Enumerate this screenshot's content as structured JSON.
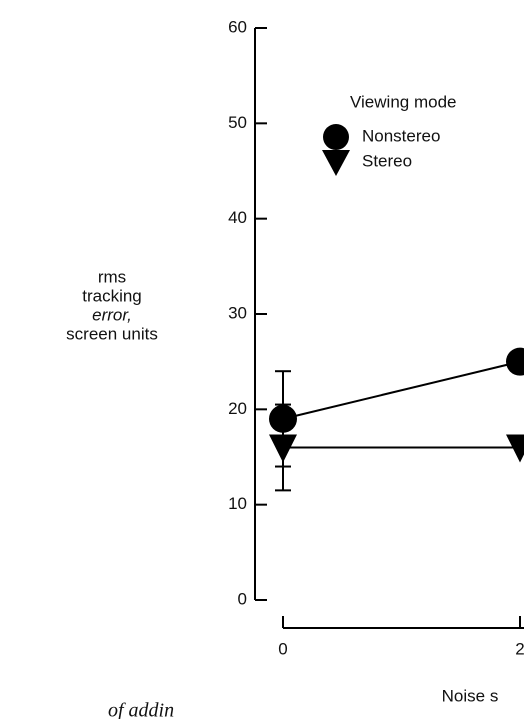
{
  "chart_data": {
    "type": "line",
    "ylabel": [
      "rms",
      "tracking",
      "error,",
      "screen units"
    ],
    "xlabel": "Noise s",
    "legend_title": "Viewing mode",
    "legend": "upper-left",
    "x": [
      0,
      2
    ],
    "series": [
      {
        "name": "Nonstereo",
        "color": "#000000",
        "marker": "circle",
        "values": [
          19,
          25
        ],
        "errors": [
          5,
          null
        ]
      },
      {
        "name": "Stereo",
        "color": "#000000",
        "marker": "triangle",
        "values": [
          16,
          16
        ],
        "errors": [
          4.5,
          null
        ]
      }
    ],
    "xlim": [
      0,
      2
    ],
    "xticks": [
      0,
      2
    ],
    "ylim": [
      0,
      60
    ],
    "yticks": [
      0,
      10,
      20,
      30,
      40,
      50,
      60
    ],
    "caption": "of addin"
  }
}
